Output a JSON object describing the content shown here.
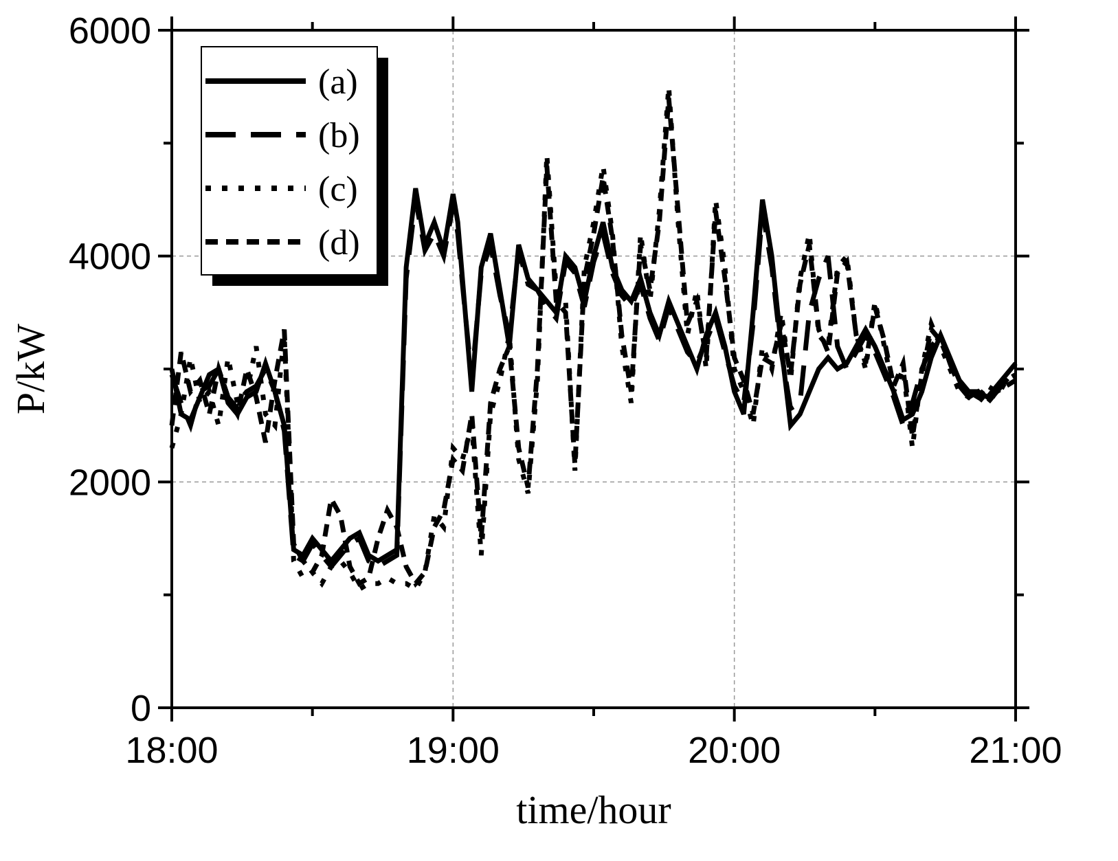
{
  "chart_data": {
    "type": "line",
    "xlabel": "time/hour",
    "ylabel": "P/kW",
    "xlim": [
      0,
      180
    ],
    "ylim": [
      0,
      6000
    ],
    "x_ticks": [
      {
        "value": 0,
        "label": "18:00"
      },
      {
        "value": 60,
        "label": "19:00"
      },
      {
        "value": 120,
        "label": "20:00"
      },
      {
        "value": 180,
        "label": "21:00"
      }
    ],
    "y_ticks": [
      {
        "value": 0,
        "label": "0"
      },
      {
        "value": 2000,
        "label": "2000"
      },
      {
        "value": 4000,
        "label": "4000"
      },
      {
        "value": 6000,
        "label": "6000"
      }
    ],
    "grid": "dashed at labeled ticks",
    "legend_position": "top-left",
    "series": [
      {
        "name": "(a)",
        "style": "solid",
        "x": [
          0,
          2,
          4,
          6,
          8,
          10,
          12,
          14,
          16,
          18,
          20,
          22,
          24,
          26,
          28,
          30,
          32,
          34,
          36,
          38,
          40,
          42,
          44,
          46,
          48,
          50,
          52,
          54,
          56,
          58,
          60,
          61,
          62,
          64,
          66,
          68,
          70,
          72,
          74,
          76,
          78,
          80,
          82,
          84,
          86,
          88,
          90,
          92,
          94,
          96,
          98,
          100,
          102,
          104,
          106,
          108,
          110,
          112,
          114,
          116,
          118,
          120,
          122,
          124,
          126,
          128,
          130,
          132,
          134,
          136,
          138,
          140,
          142,
          144,
          146,
          148,
          150,
          152,
          154,
          156,
          158,
          160,
          162,
          164,
          166,
          168,
          170,
          172,
          174,
          176,
          178,
          180
        ],
        "y": [
          3000,
          2600,
          2550,
          2750,
          2950,
          3000,
          2700,
          2600,
          2750,
          2800,
          3050,
          2800,
          2500,
          1400,
          1350,
          1500,
          1400,
          1300,
          1400,
          1500,
          1550,
          1350,
          1300,
          1350,
          1400,
          3900,
          4600,
          4100,
          4300,
          4050,
          4550,
          4300,
          3800,
          2800,
          3900,
          4200,
          3700,
          3200,
          4100,
          3800,
          3700,
          3600,
          3500,
          4000,
          3900,
          3600,
          4000,
          4300,
          3900,
          3700,
          3600,
          3800,
          3500,
          3300,
          3600,
          3400,
          3200,
          3000,
          3300,
          3500,
          3200,
          2800,
          2600,
          3500,
          4500,
          4000,
          3200,
          2500,
          2600,
          2800,
          3000,
          3100,
          3000,
          3050,
          3200,
          3350,
          3200,
          3000,
          2800,
          2550,
          2600,
          2800,
          3100,
          3300,
          3100,
          2900,
          2800,
          2800,
          2750,
          2850,
          2950,
          3050
        ]
      },
      {
        "name": "(b)",
        "style": "long-dash",
        "x": [
          0,
          2,
          4,
          6,
          8,
          10,
          12,
          14,
          16,
          18,
          20,
          22,
          24,
          26,
          28,
          30,
          32,
          34,
          36,
          38,
          40,
          42,
          44,
          46,
          48,
          50,
          52,
          54,
          56,
          58,
          60,
          61,
          62,
          64,
          66,
          68,
          70,
          72,
          74,
          76,
          78,
          80,
          82,
          84,
          86,
          88,
          90,
          92,
          94,
          96,
          98,
          100,
          102,
          104,
          106,
          108,
          110,
          112,
          114,
          116,
          118,
          120,
          122,
          124,
          126,
          128,
          130,
          132,
          134,
          136,
          138,
          140,
          142,
          144,
          146,
          148,
          150,
          152,
          154,
          156,
          158,
          160,
          162,
          164,
          166,
          168,
          170,
          172,
          174,
          176,
          178,
          180
        ],
        "y": [
          2950,
          2700,
          2500,
          2800,
          2850,
          3000,
          2750,
          2650,
          2800,
          2850,
          3000,
          2800,
          2450,
          1350,
          1300,
          1450,
          1350,
          1250,
          1350,
          1450,
          1500,
          1300,
          1250,
          1300,
          1350,
          3800,
          4500,
          4050,
          4200,
          4000,
          4450,
          4200,
          3750,
          2900,
          3850,
          4100,
          3650,
          3300,
          4050,
          3750,
          3700,
          3550,
          3450,
          3950,
          3850,
          3550,
          3950,
          4200,
          3850,
          3650,
          3550,
          3750,
          3450,
          3250,
          3550,
          3350,
          3150,
          3050,
          3250,
          3450,
          3150,
          2850,
          2700,
          3400,
          4400,
          3900,
          3150,
          2650,
          2700,
          3500,
          3800,
          4000,
          3200,
          3000,
          3150,
          3300,
          3150,
          2950,
          2750,
          2500,
          2700,
          3000,
          3200,
          3300,
          3050,
          2850,
          2750,
          2800,
          2700,
          2800,
          2900,
          3000
        ]
      },
      {
        "name": "(c)",
        "style": "dotted",
        "x": [
          0,
          2,
          4,
          6,
          8,
          10,
          12,
          14,
          16,
          18,
          20,
          22,
          24,
          26,
          28,
          30,
          32,
          34,
          36,
          38,
          40,
          42,
          44,
          46,
          48,
          50,
          52,
          54,
          56,
          58,
          60,
          62,
          64,
          66,
          68,
          70,
          72,
          74,
          76,
          78,
          80,
          82,
          84,
          86,
          88,
          90,
          92,
          94,
          96,
          98,
          100,
          102,
          104,
          106,
          108,
          110,
          112,
          114,
          116,
          118,
          120,
          122,
          124,
          126,
          128,
          130,
          132,
          134,
          136,
          138,
          140,
          142,
          144,
          146,
          148,
          150,
          152,
          154,
          156,
          158,
          160,
          162,
          164,
          166,
          168,
          170,
          172,
          174,
          176,
          178,
          180
        ],
        "y": [
          2300,
          2600,
          3100,
          2700,
          2800,
          2500,
          3100,
          2700,
          2800,
          3200,
          2600,
          2500,
          3300,
          1300,
          1150,
          1200,
          1100,
          1250,
          1300,
          1200,
          1050,
          1100,
          1100,
          1150,
          1100,
          1100,
          1050,
          1200,
          1700,
          1600,
          2300,
          2200,
          2500,
          1350,
          2600,
          2900,
          3300,
          2200,
          1900,
          2900,
          4900,
          3700,
          3600,
          2100,
          3900,
          4300,
          4800,
          4200,
          3200,
          2700,
          4200,
          3600,
          4400,
          5500,
          4300,
          3300,
          3700,
          3000,
          4500,
          3900,
          3000,
          2800,
          2500,
          3200,
          3000,
          3500,
          2900,
          3800,
          4200,
          3300,
          3200,
          3900,
          4000,
          3300,
          3000,
          3600,
          3200,
          2800,
          3000,
          2300,
          3000,
          3400,
          3200,
          3000,
          2800,
          2750,
          2700,
          2800,
          2750,
          2900,
          2950
        ]
      },
      {
        "name": "(d)",
        "style": "short-dash",
        "x": [
          0,
          2,
          4,
          6,
          8,
          10,
          12,
          14,
          16,
          18,
          20,
          22,
          24,
          26,
          28,
          30,
          32,
          34,
          36,
          38,
          40,
          42,
          44,
          46,
          48,
          50,
          52,
          54,
          56,
          58,
          60,
          62,
          64,
          66,
          68,
          70,
          72,
          74,
          76,
          78,
          80,
          82,
          84,
          86,
          88,
          90,
          92,
          94,
          96,
          98,
          100,
          102,
          104,
          106,
          108,
          110,
          112,
          114,
          116,
          118,
          120,
          122,
          124,
          126,
          128,
          130,
          132,
          134,
          136,
          138,
          140,
          142,
          144,
          146,
          148,
          150,
          152,
          154,
          156,
          158,
          160,
          162,
          164,
          166,
          168,
          170,
          172,
          174,
          176,
          178,
          180
        ],
        "y": [
          2500,
          3150,
          2800,
          2900,
          2600,
          3000,
          2750,
          2600,
          3000,
          2750,
          2350,
          2900,
          3350,
          1450,
          1300,
          1200,
          1350,
          1850,
          1700,
          1250,
          1100,
          1150,
          1500,
          1750,
          1600,
          1250,
          1100,
          1200,
          1600,
          1750,
          2200,
          2100,
          2600,
          1500,
          2700,
          3000,
          3200,
          2300,
          1950,
          3000,
          4800,
          3600,
          3500,
          2150,
          3800,
          4200,
          4700,
          4150,
          3300,
          2800,
          4100,
          3700,
          4300,
          5400,
          4400,
          3400,
          3600,
          3100,
          4400,
          3800,
          3100,
          2900,
          2600,
          3100,
          3050,
          3400,
          2950,
          3750,
          4100,
          3350,
          3150,
          3850,
          3950,
          3300,
          3050,
          3550,
          3250,
          2850,
          3050,
          2400,
          2950,
          3350,
          3250,
          3050,
          2850,
          2800,
          2750,
          2850,
          2800,
          2850,
          2900
        ]
      }
    ]
  }
}
